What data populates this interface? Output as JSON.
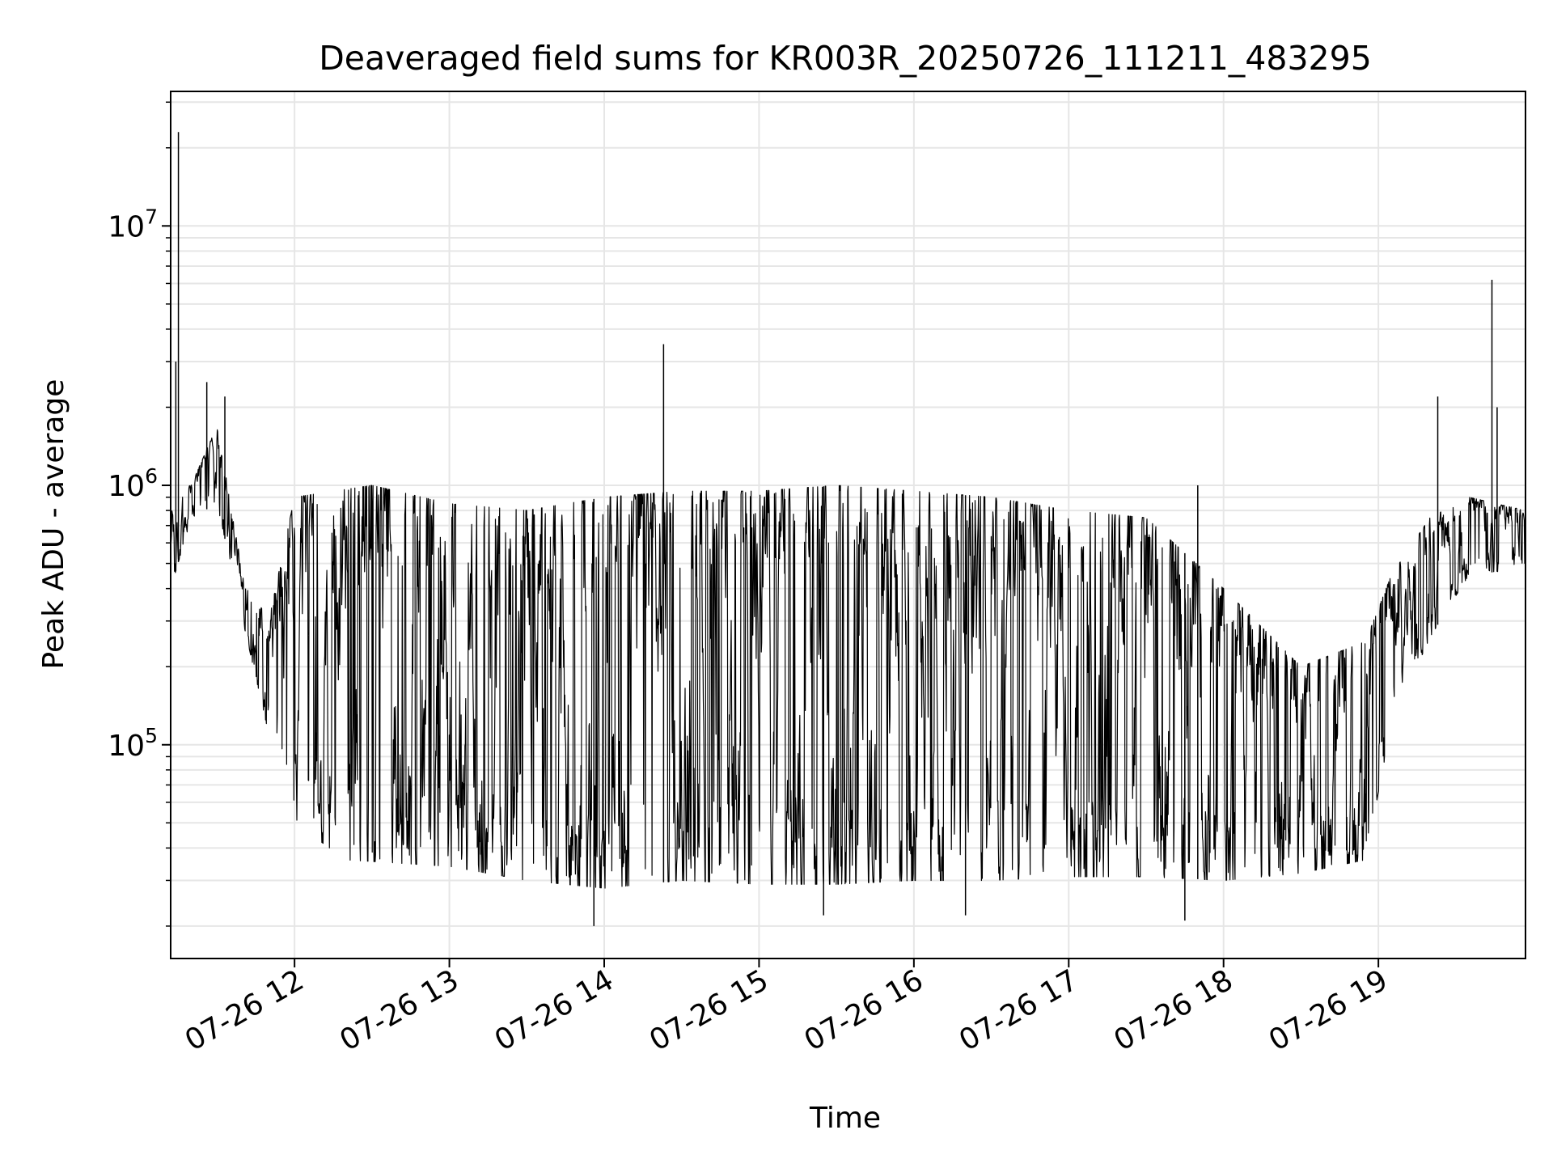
{
  "chart_data": {
    "type": "line",
    "title": "Deaveraged field sums for KR003R_20250726_111211_483295",
    "xlabel": "Time",
    "ylabel": "Peak ADU - average",
    "x_scale": "time",
    "y_scale": "log",
    "xlim": [
      "2025-07-26 11:12",
      "2025-07-26 19:57"
    ],
    "ylim": [
      15000,
      33000000
    ],
    "grid": true,
    "legend": "none",
    "x_ticks": [
      {
        "value": "2025-07-26 12:00",
        "label": "07-26 12"
      },
      {
        "value": "2025-07-26 13:00",
        "label": "07-26 13"
      },
      {
        "value": "2025-07-26 14:00",
        "label": "07-26 14"
      },
      {
        "value": "2025-07-26 15:00",
        "label": "07-26 15"
      },
      {
        "value": "2025-07-26 16:00",
        "label": "07-26 16"
      },
      {
        "value": "2025-07-26 17:00",
        "label": "07-26 17"
      },
      {
        "value": "2025-07-26 18:00",
        "label": "07-26 18"
      },
      {
        "value": "2025-07-26 19:00",
        "label": "07-26 19"
      }
    ],
    "y_ticks": [
      {
        "value": 100000,
        "base": "10",
        "exp": "5"
      },
      {
        "value": 1000000,
        "base": "10",
        "exp": "6"
      },
      {
        "value": 10000000,
        "base": "10",
        "exp": "7"
      }
    ],
    "series": [
      {
        "color": "#000000",
        "low_envelope": [
          [
            "2025-07-26 11:12",
            400000
          ],
          [
            "2025-07-26 11:20",
            750000
          ],
          [
            "2025-07-26 11:30",
            850000
          ],
          [
            "2025-07-26 11:40",
            300000
          ],
          [
            "2025-07-26 11:50",
            110000
          ],
          [
            "2025-07-26 12:00",
            50000
          ],
          [
            "2025-07-26 12:20",
            36000
          ],
          [
            "2025-07-26 13:00",
            34000
          ],
          [
            "2025-07-26 13:30",
            30000
          ],
          [
            "2025-07-26 14:00",
            28000
          ],
          [
            "2025-07-26 14:30",
            30000
          ],
          [
            "2025-07-26 15:00",
            29000
          ],
          [
            "2025-07-26 15:30",
            29000
          ],
          [
            "2025-07-26 16:00",
            30000
          ],
          [
            "2025-07-26 16:30",
            30000
          ],
          [
            "2025-07-26 17:00",
            31000
          ],
          [
            "2025-07-26 17:30",
            31000
          ],
          [
            "2025-07-26 18:00",
            30000
          ],
          [
            "2025-07-26 18:30",
            32000
          ],
          [
            "2025-07-26 18:55",
            36000
          ],
          [
            "2025-07-26 19:05",
            120000
          ],
          [
            "2025-07-26 19:20",
            260000
          ],
          [
            "2025-07-26 19:35",
            450000
          ],
          [
            "2025-07-26 19:57",
            480000
          ]
        ],
        "high_envelope": [
          [
            "2025-07-26 11:12",
            1000000
          ],
          [
            "2025-07-26 11:20",
            1000000
          ],
          [
            "2025-07-26 11:30",
            1700000
          ],
          [
            "2025-07-26 11:40",
            450000
          ],
          [
            "2025-07-26 11:50",
            300000
          ],
          [
            "2025-07-26 12:00",
            900000
          ],
          [
            "2025-07-26 12:30",
            1000000
          ],
          [
            "2025-07-26 13:00",
            850000
          ],
          [
            "2025-07-26 13:30",
            800000
          ],
          [
            "2025-07-26 14:00",
            900000
          ],
          [
            "2025-07-26 14:30",
            950000
          ],
          [
            "2025-07-26 15:00",
            950000
          ],
          [
            "2025-07-26 15:30",
            1000000
          ],
          [
            "2025-07-26 16:00",
            950000
          ],
          [
            "2025-07-26 16:30",
            900000
          ],
          [
            "2025-07-26 17:00",
            800000
          ],
          [
            "2025-07-26 17:30",
            750000
          ],
          [
            "2025-07-26 18:00",
            400000
          ],
          [
            "2025-07-26 18:30",
            200000
          ],
          [
            "2025-07-26 18:55",
            250000
          ],
          [
            "2025-07-26 19:05",
            450000
          ],
          [
            "2025-07-26 19:20",
            750000
          ],
          [
            "2025-07-26 19:35",
            900000
          ],
          [
            "2025-07-26 19:57",
            800000
          ]
        ],
        "spikes": [
          [
            "2025-07-26 11:15",
            23000000
          ],
          [
            "2025-07-26 11:14",
            3000000
          ],
          [
            "2025-07-26 11:26",
            2500000
          ],
          [
            "2025-07-26 11:33",
            2200000
          ],
          [
            "2025-07-26 14:23",
            3500000
          ],
          [
            "2025-07-26 17:50",
            1000000
          ],
          [
            "2025-07-26 19:23",
            2200000
          ],
          [
            "2025-07-26 19:44",
            6200000
          ],
          [
            "2025-07-26 19:46",
            2000000
          ]
        ],
        "dips": [
          [
            "2025-07-26 13:56",
            20000
          ],
          [
            "2025-07-26 17:45",
            21000
          ],
          [
            "2025-07-26 15:25",
            22000
          ],
          [
            "2025-07-26 16:20",
            22000
          ]
        ]
      }
    ]
  }
}
